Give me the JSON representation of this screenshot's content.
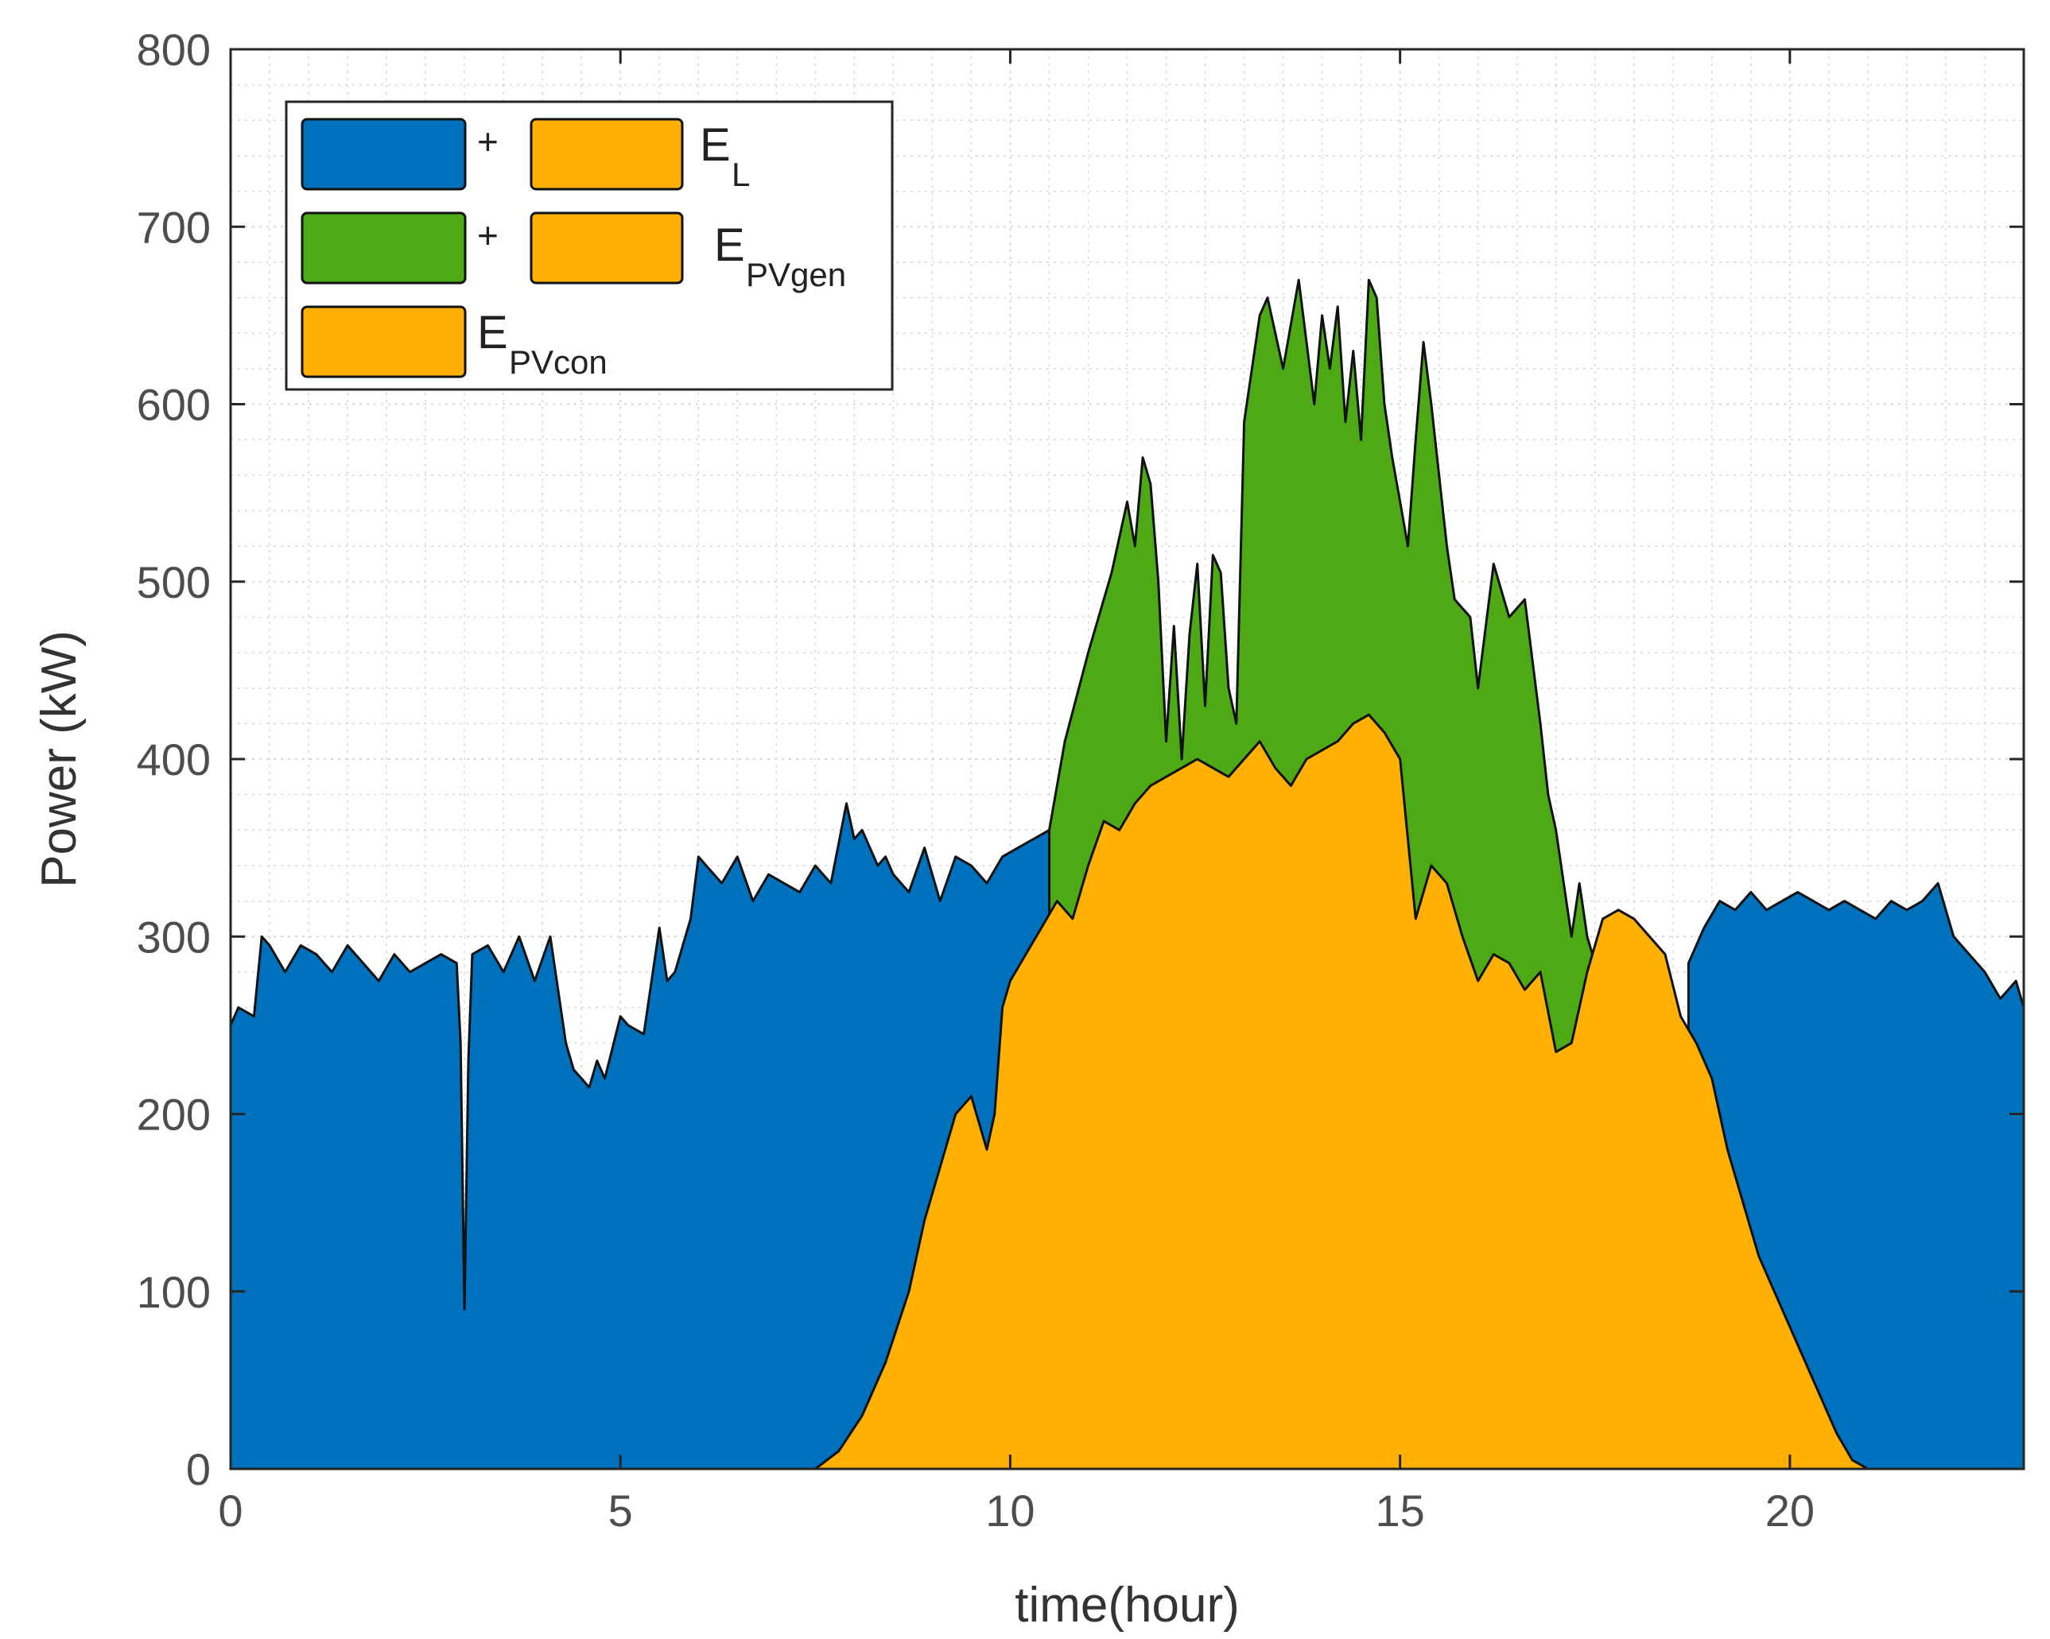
{
  "chart_data": {
    "type": "area",
    "xlabel": "time(hour)",
    "ylabel": "Power (kW)",
    "xlim": [
      0,
      23
    ],
    "ylim": [
      0,
      800
    ],
    "xticks": [
      0,
      5,
      10,
      15,
      20
    ],
    "yticks": [
      0,
      100,
      200,
      300,
      400,
      500,
      600,
      700,
      800
    ],
    "grid": "major and minor, dotted",
    "legend_position": "top-left",
    "legend": [
      {
        "swatches": [
          "#0072BD",
          "#FFB000"
        ],
        "plus": "+",
        "label": "E",
        "sub": "L"
      },
      {
        "swatches": [
          "#4DAA14",
          "#FFB000"
        ],
        "plus": "+",
        "label": "E",
        "sub": "PVgen"
      },
      {
        "swatches": [
          "#FFB000"
        ],
        "plus": "",
        "label": "E",
        "sub": "PVcon"
      }
    ],
    "colors": {
      "load": "#0072BD",
      "pv_gen": "#4DAA14",
      "pv_con": "#FFB000"
    },
    "series": [
      {
        "key": "pv_gen",
        "color": "#4DAA14",
        "x": [
          10.5,
          10.7,
          11.0,
          11.3,
          11.5,
          11.6,
          11.7,
          11.8,
          11.9,
          12.0,
          12.1,
          12.2,
          12.3,
          12.4,
          12.5,
          12.6,
          12.7,
          12.8,
          12.9,
          13.0,
          13.1,
          13.2,
          13.3,
          13.5,
          13.7,
          13.9,
          14.0,
          14.1,
          14.2,
          14.3,
          14.4,
          14.5,
          14.6,
          14.7,
          14.8,
          14.9,
          15.0,
          15.1,
          15.2,
          15.3,
          15.4,
          15.5,
          15.6,
          15.7,
          15.9,
          16.0,
          16.2,
          16.4,
          16.6,
          16.8,
          16.9,
          17.0,
          17.1,
          17.2,
          17.3,
          17.4,
          17.5,
          17.7,
          17.9,
          18.0,
          18.1,
          18.2,
          18.3,
          18.4,
          18.5,
          18.6
        ],
        "values": [
          360,
          410,
          460,
          505,
          545,
          520,
          570,
          555,
          500,
          410,
          475,
          400,
          470,
          510,
          430,
          515,
          505,
          440,
          420,
          590,
          620,
          650,
          660,
          620,
          670,
          600,
          650,
          620,
          655,
          590,
          630,
          580,
          670,
          660,
          600,
          570,
          545,
          520,
          580,
          635,
          600,
          560,
          520,
          490,
          480,
          440,
          510,
          480,
          490,
          420,
          380,
          360,
          330,
          300,
          330,
          300,
          285,
          270,
          260,
          250,
          240,
          230,
          220,
          215,
          210,
          205
        ]
      },
      {
        "key": "load",
        "color": "#0072BD",
        "x": [
          0,
          0.1,
          0.3,
          0.4,
          0.5,
          0.7,
          0.9,
          1.1,
          1.3,
          1.5,
          1.7,
          1.9,
          2.1,
          2.3,
          2.5,
          2.7,
          2.9,
          2.95,
          3.0,
          3.05,
          3.1,
          3.3,
          3.5,
          3.7,
          3.9,
          4.1,
          4.2,
          4.3,
          4.4,
          4.5,
          4.6,
          4.7,
          4.8,
          5.0,
          5.1,
          5.3,
          5.5,
          5.6,
          5.7,
          5.9,
          6.0,
          6.1,
          6.3,
          6.5,
          6.7,
          6.9,
          7.1,
          7.3,
          7.5,
          7.7,
          7.9,
          8.0,
          8.1,
          8.2,
          8.3,
          8.4,
          8.5,
          8.7,
          8.9,
          9.1,
          9.3,
          9.5,
          9.7,
          9.9,
          10.1,
          10.3,
          10.5
        ],
        "values": [
          250,
          260,
          255,
          300,
          295,
          280,
          295,
          290,
          280,
          295,
          285,
          275,
          290,
          280,
          285,
          290,
          285,
          240,
          90,
          230,
          290,
          295,
          280,
          300,
          275,
          300,
          270,
          240,
          225,
          220,
          215,
          230,
          220,
          255,
          250,
          245,
          305,
          275,
          280,
          310,
          345,
          340,
          330,
          345,
          320,
          335,
          330,
          325,
          340,
          330,
          375,
          355,
          360,
          350,
          340,
          345,
          335,
          325,
          350,
          320,
          345,
          340,
          330,
          345,
          350,
          355,
          360
        ]
      },
      {
        "key": "load_evening",
        "color": "#0072BD",
        "x": [
          18.7,
          18.9,
          19.1,
          19.3,
          19.5,
          19.7,
          19.9,
          20.1,
          20.3,
          20.5,
          20.7,
          20.9,
          21.1,
          21.3,
          21.5,
          21.7,
          21.9,
          22.1,
          22.3,
          22.5,
          22.7,
          22.9,
          23.0
        ],
        "values": [
          285,
          305,
          320,
          315,
          325,
          315,
          320,
          325,
          320,
          315,
          320,
          315,
          310,
          320,
          315,
          320,
          330,
          300,
          290,
          280,
          265,
          275,
          260
        ]
      },
      {
        "key": "pv_con",
        "color": "#FFB000",
        "x": [
          7.5,
          7.8,
          8.1,
          8.4,
          8.7,
          8.9,
          9.1,
          9.3,
          9.5,
          9.7,
          9.8,
          9.9,
          10.0,
          10.2,
          10.4,
          10.6,
          10.8,
          11.0,
          11.2,
          11.4,
          11.6,
          11.8,
          12.0,
          12.2,
          12.4,
          12.6,
          12.8,
          13.0,
          13.2,
          13.4,
          13.6,
          13.8,
          14.0,
          14.2,
          14.4,
          14.6,
          14.8,
          15.0,
          15.2,
          15.4,
          15.6,
          15.8,
          16.0,
          16.2,
          16.4,
          16.6,
          16.8,
          17.0,
          17.2,
          17.4,
          17.6,
          17.8,
          18.0,
          18.2,
          18.4,
          18.6,
          18.8,
          19.0,
          19.2,
          19.4,
          19.6,
          19.8,
          20.0,
          20.2,
          20.4,
          20.6,
          20.8,
          21.0
        ],
        "values": [
          0,
          10,
          30,
          60,
          100,
          140,
          170,
          200,
          210,
          180,
          200,
          260,
          275,
          290,
          305,
          320,
          310,
          340,
          365,
          360,
          375,
          385,
          390,
          395,
          400,
          395,
          390,
          400,
          410,
          395,
          385,
          400,
          405,
          410,
          420,
          425,
          415,
          400,
          310,
          340,
          330,
          300,
          275,
          290,
          285,
          270,
          280,
          235,
          240,
          280,
          310,
          315,
          310,
          300,
          290,
          255,
          240,
          220,
          180,
          150,
          120,
          100,
          80,
          60,
          40,
          20,
          5,
          0
        ]
      }
    ]
  }
}
